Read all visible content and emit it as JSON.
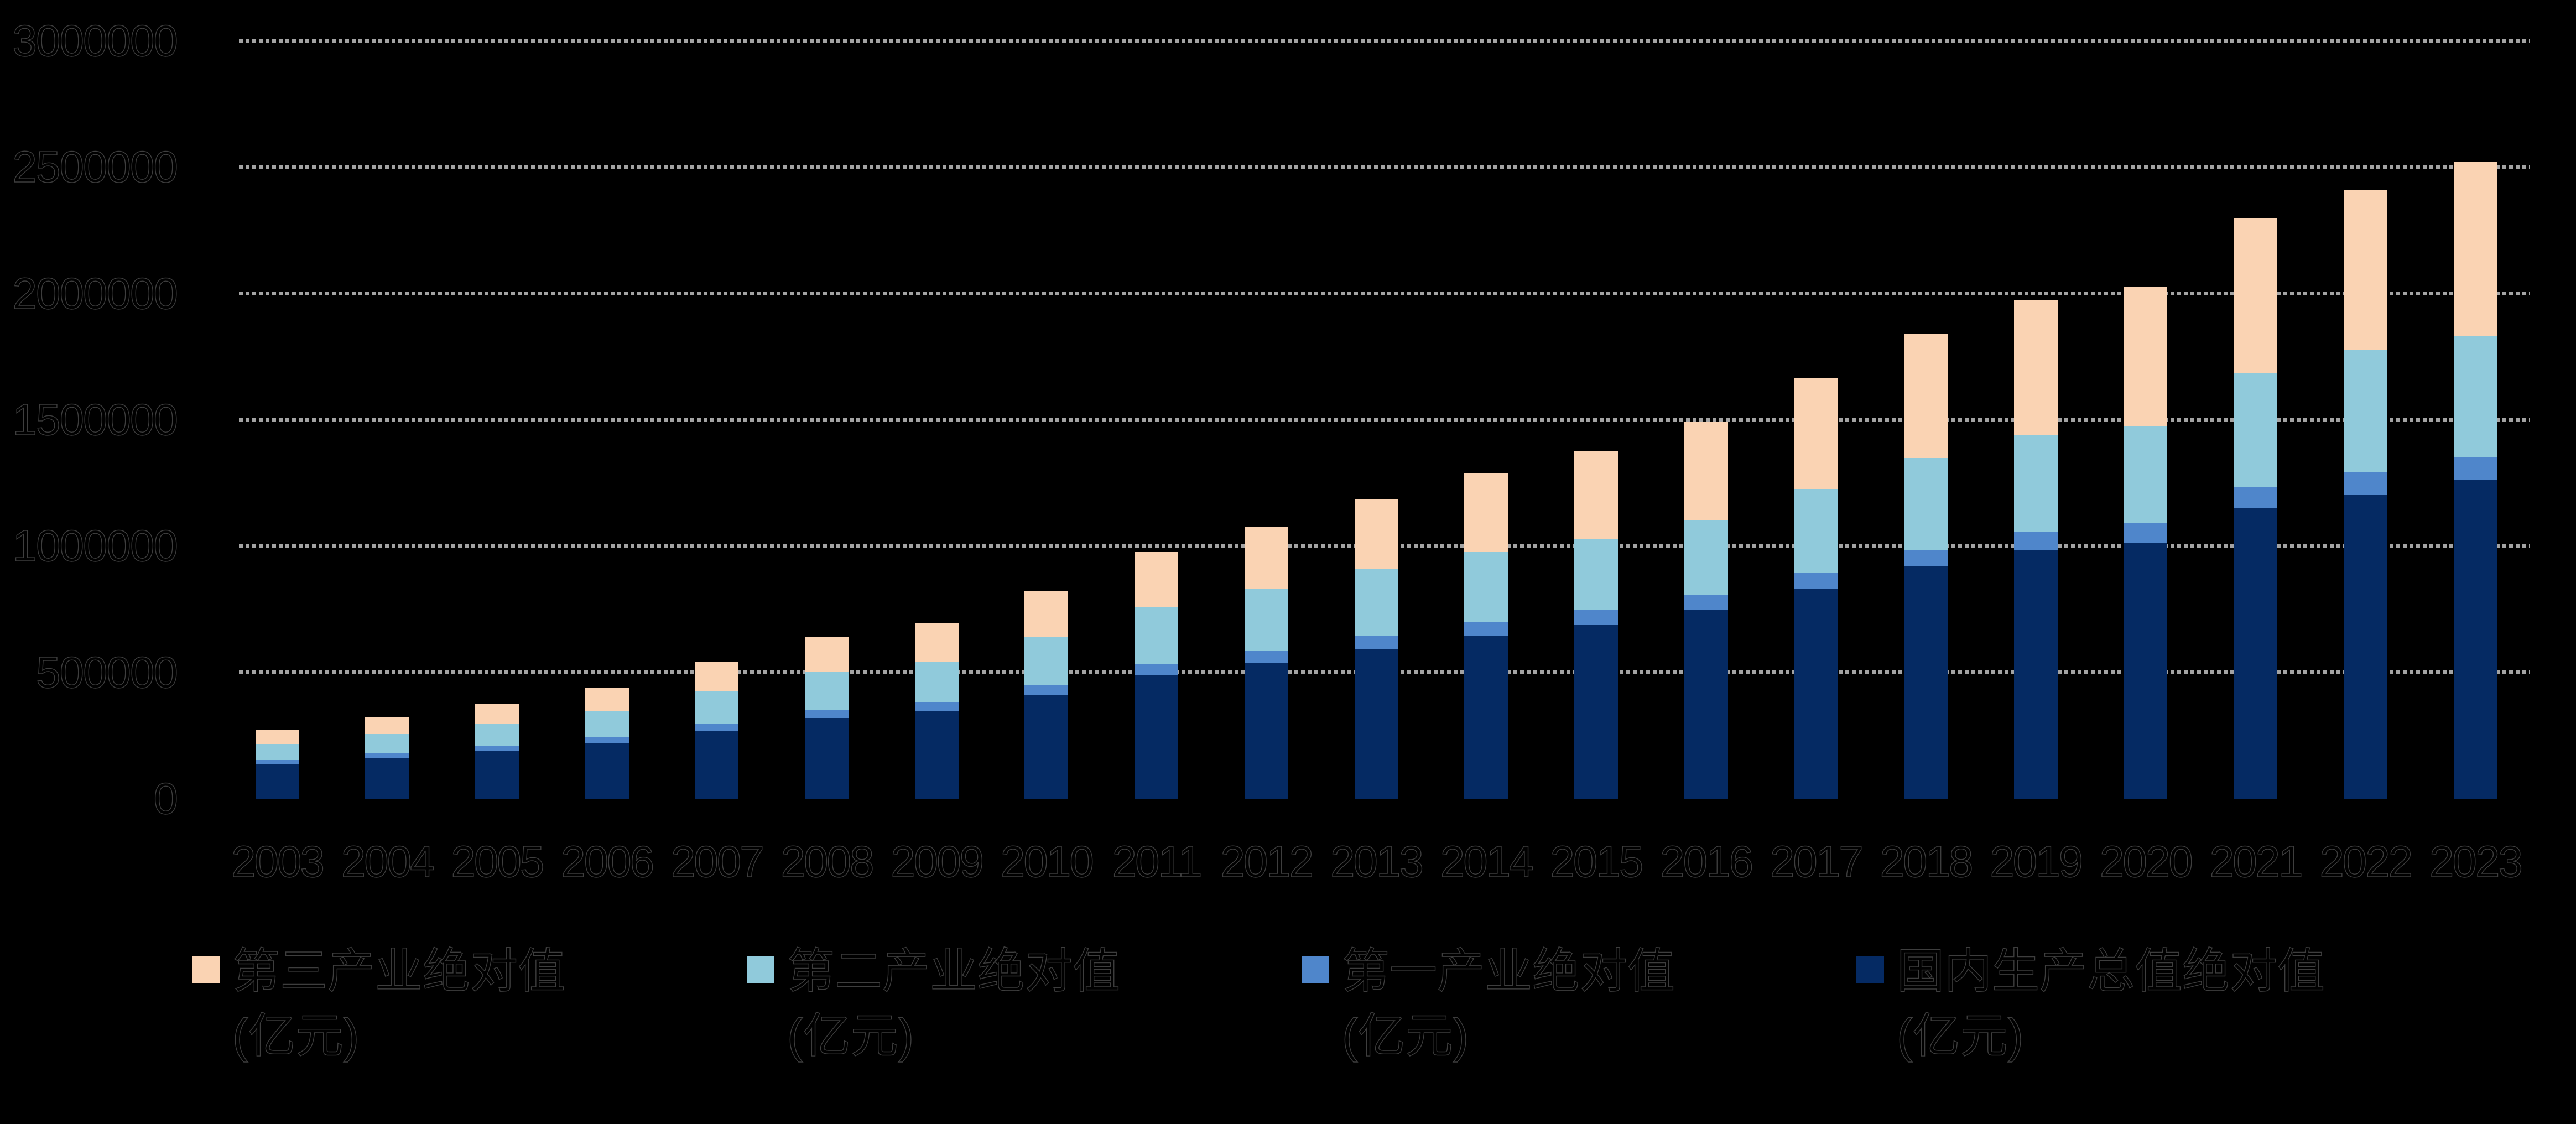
{
  "chart_data": {
    "type": "bar",
    "stacked": true,
    "title": "",
    "xlabel": "",
    "ylabel": "",
    "x": [
      "2003",
      "2004",
      "2005",
      "2006",
      "2007",
      "2008",
      "2009",
      "2010",
      "2011",
      "2012",
      "2013",
      "2014",
      "2015",
      "2016",
      "2017",
      "2018",
      "2019",
      "2020",
      "2021",
      "2022",
      "2023"
    ],
    "series": [
      {
        "name": "国内生产总值绝对值(亿元)",
        "color": "#052a63",
        "values": [
          137422,
          161840,
          187319,
          219439,
          270092,
          319245,
          348518,
          412119,
          487940,
          538580,
          592963,
          643563,
          688858,
          746395,
          832036,
          919281,
          986515,
          1013567,
          1149237,
          1204724,
          1260582
        ]
      },
      {
        "name": "第一产业绝对值(亿元)",
        "color": "#4f86cb",
        "values": [
          16970,
          20904,
          21806,
          23317,
          27674,
          32464,
          33584,
          38431,
          44781,
          49084,
          53028,
          55626,
          57775,
          60139,
          62100,
          64745,
          70474,
          78031,
          83217,
          88345,
          89755
        ]
      },
      {
        "name": "第二产业绝对值(亿元)",
        "color": "#90cadb",
        "values": [
          62436,
          73904,
          87598,
          103720,
          126634,
          149956,
          160172,
          191630,
          227039,
          244643,
          261956,
          277572,
          282040,
          296548,
          331581,
          364835,
          380671,
          383562,
          450905,
          483165,
          482589
        ]
      },
      {
        "name": "第三产业绝对值(亿元)",
        "color": "#fad3b3",
        "values": [
          58016,
          67032,
          77915,
          92402,
          115784,
          136824,
          154762,
          182058,
          216120,
          244852,
          277979,
          310365,
          349043,
          389708,
          438355,
          489701,
          535371,
          551974,
          615115,
          633214,
          688238
        ]
      }
    ],
    "stack_order_note": "bottom to top: GDP(navy), primary(royal blue), secondary(sky blue), tertiary(peach)",
    "ylim": [
      0,
      3000000
    ],
    "ytick_interval": 500000,
    "ytick_labels": [
      "0",
      "500000",
      "1000000",
      "1500000",
      "2000000",
      "2500000",
      "3000000"
    ],
    "grid": "horizontal dotted, no line at 0",
    "gridline_color": "#a3a3a3",
    "legend_position": "bottom",
    "background_color": "#000000",
    "text_color": "#000000"
  },
  "legend": {
    "items": [
      {
        "line1": "第三产业绝对值",
        "line2": "(亿元)",
        "color": "#fad3b3",
        "key": "tertiary"
      },
      {
        "line1": "第二产业绝对值",
        "line2": "(亿元)",
        "color": "#90cadb",
        "key": "secondary"
      },
      {
        "line1": "第一产业绝对值",
        "line2": "(亿元)",
        "color": "#4f86cb",
        "key": "primary"
      },
      {
        "line1": "国内生产总值绝对值",
        "line2": "(亿元)",
        "color": "#052a63",
        "key": "gdp"
      }
    ]
  }
}
